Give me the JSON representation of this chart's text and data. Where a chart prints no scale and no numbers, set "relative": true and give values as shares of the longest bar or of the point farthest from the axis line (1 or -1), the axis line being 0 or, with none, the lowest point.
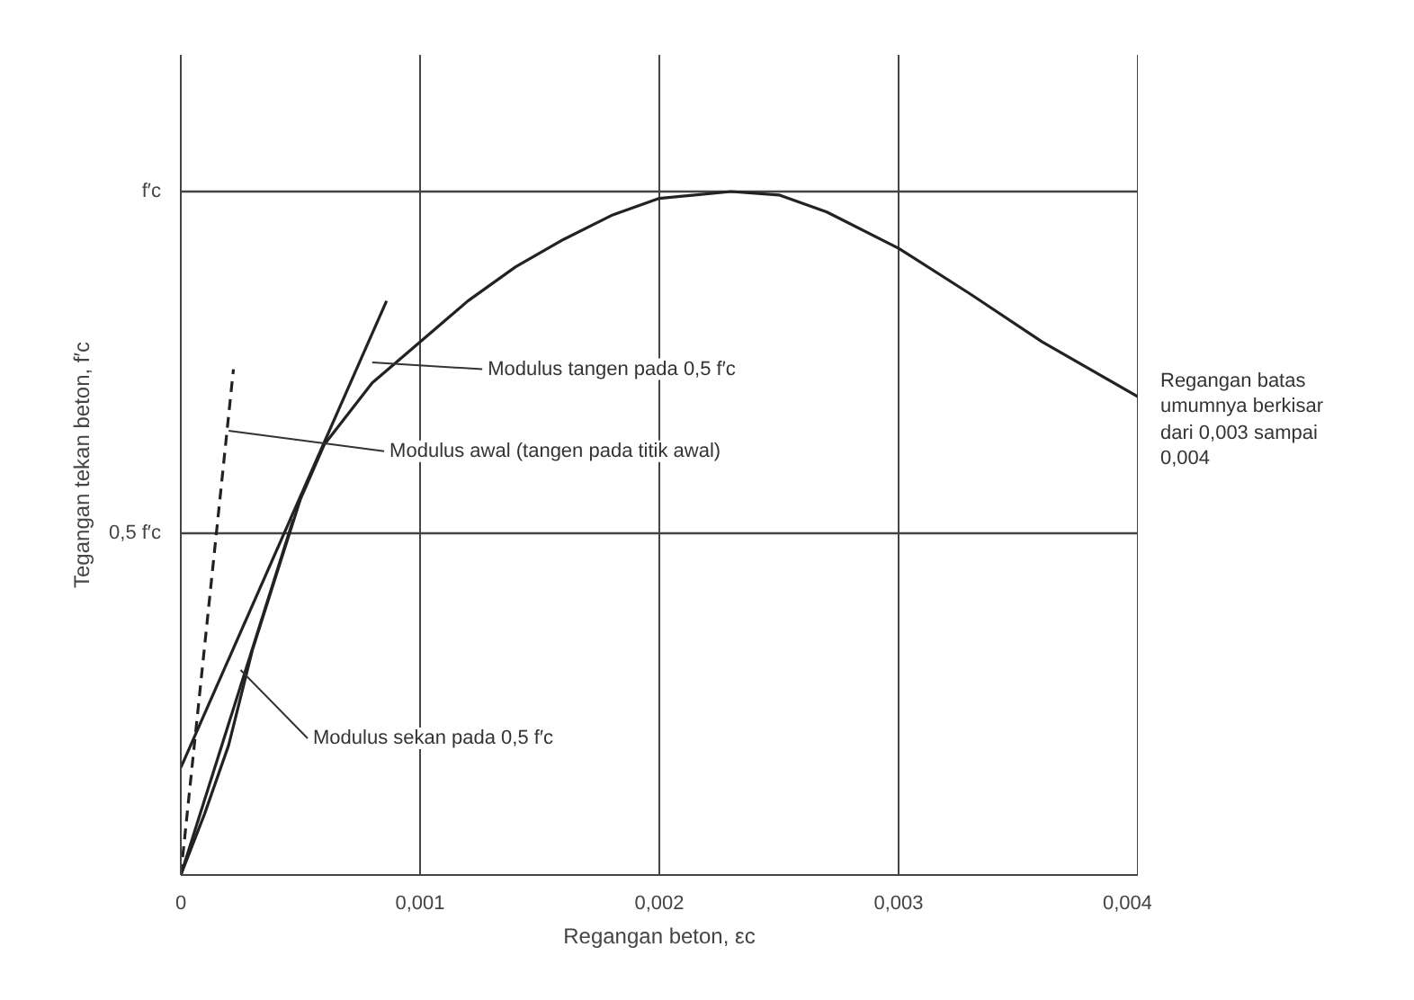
{
  "chart_data": {
    "type": "line",
    "xlabel": "Regangan beton, εc",
    "ylabel": "Tegangan tekan beton, f′c",
    "xlim": [
      0,
      0.004
    ],
    "xticks": [
      {
        "value": 0,
        "label": "0"
      },
      {
        "value": 0.001,
        "label": "0,001"
      },
      {
        "value": 0.002,
        "label": "0,002"
      },
      {
        "value": 0.003,
        "label": "0,003"
      },
      {
        "value": 0.004,
        "label": "0,004"
      }
    ],
    "relative": true,
    "grid": "x",
    "ref_lines": [
      {
        "axis": "y",
        "value": 0.5,
        "label": "0,5 f′c"
      },
      {
        "axis": "y",
        "value": 1,
        "label": "f′c"
      }
    ],
    "series": [
      {
        "color": "#222222",
        "line_style": "solid",
        "x": [
          0,
          0.0001,
          0.0002,
          0.0003,
          0.0004,
          0.0005,
          0.0006,
          0.0008,
          0.001,
          0.0012,
          0.0014,
          0.0016,
          0.0018,
          0.002,
          0.0023,
          0.0025,
          0.0027,
          0.003,
          0.0033,
          0.0036,
          0.004
        ],
        "values": [
          0,
          0.09,
          0.19,
          0.33,
          0.44,
          0.55,
          0.63,
          0.72,
          0.78,
          0.84,
          0.89,
          0.93,
          0.965,
          0.99,
          1.0,
          0.995,
          0.97,
          0.917,
          0.85,
          0.78,
          0.7
        ]
      },
      {
        "color": "#222222",
        "line_style": "solid",
        "x": [
          0,
          0.00086
        ],
        "values": [
          0.157,
          0.84
        ]
      },
      {
        "color": "#222222",
        "line_style": "dashed",
        "x": [
          0,
          0.00022
        ],
        "values": [
          0,
          0.74
        ]
      },
      {
        "color": "#222222",
        "line_style": "solid",
        "x": [
          0,
          0.00047
        ],
        "values": [
          0,
          0.52
        ]
      }
    ],
    "annotations": [
      "Modulus tangen pada 0,5 f′c",
      "Modulus awal (tangen pada titik awal)",
      "Modulus sekan pada 0,5 f′c",
      "Regangan batas umumnya berkisar dari 0,003 sampai 0,004"
    ]
  }
}
